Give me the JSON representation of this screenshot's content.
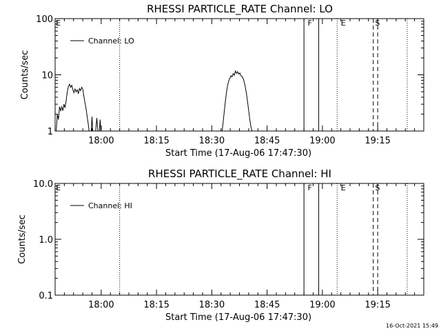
{
  "timestamp": "16-Oct-2021 15:49",
  "xlabel": "Start Time (17-Aug-06 17:47:30)",
  "x_ticks": [
    "18:00",
    "18:15",
    "18:30",
    "18:45",
    "19:00",
    "19:15"
  ],
  "x_minutes": [
    0,
    100
  ],
  "tick_minutes": [
    12.5,
    27.5,
    42.5,
    57.5,
    72.5,
    87.5
  ],
  "markers": {
    "dotted_minutes": [
      17.5,
      76.5,
      95.5
    ],
    "solid_minutes": [
      67.5,
      71.5
    ],
    "dashed_minutes": [
      86.3,
      87.5
    ],
    "labels": [
      {
        "text": "F",
        "minute": 68.5
      },
      {
        "text": "E",
        "minute": 77.5
      },
      {
        "text": "S",
        "minute": 86.8
      },
      {
        "text": "E",
        "minute": 0.2
      }
    ]
  },
  "chart_data": [
    {
      "type": "line",
      "title": "RHESSI PARTICLE_RATE Channel: LO",
      "xlabel": "Start Time (17-Aug-06 17:47:30)",
      "ylabel": "Counts/sec",
      "yscale": "log",
      "ylim": [
        1,
        100
      ],
      "y_ticks": [
        "1",
        "10",
        "100"
      ],
      "y_tick_values": [
        1,
        10,
        100
      ],
      "legend": {
        "label": "Channel: LO",
        "position": "top-left"
      },
      "series": [
        {
          "name": "Channel: LO",
          "segments": [
            [
              [
                0.3,
                1
              ],
              [
                0.6,
                2.0
              ],
              [
                0.9,
                1.6
              ],
              [
                1.2,
                2.7
              ],
              [
                1.5,
                2.3
              ],
              [
                1.8,
                2.7
              ],
              [
                2.1,
                2.3
              ],
              [
                2.4,
                3.0
              ],
              [
                2.7,
                2.6
              ],
              [
                3.0,
                3.5
              ],
              [
                3.3,
                5.0
              ],
              [
                3.6,
                6.2
              ],
              [
                3.9,
                6.8
              ],
              [
                4.2,
                6.0
              ],
              [
                4.5,
                6.5
              ],
              [
                4.8,
                5.5
              ],
              [
                5.1,
                4.8
              ],
              [
                5.4,
                5.6
              ],
              [
                5.7,
                5.0
              ],
              [
                6.0,
                5.4
              ],
              [
                6.3,
                4.6
              ],
              [
                6.6,
                5.7
              ],
              [
                6.9,
                5.2
              ],
              [
                7.2,
                6.0
              ],
              [
                7.5,
                5.6
              ],
              [
                7.8,
                4.2
              ],
              [
                8.1,
                3.2
              ],
              [
                8.4,
                2.5
              ],
              [
                8.7,
                1.8
              ],
              [
                9.0,
                1.3
              ],
              [
                9.2,
                1
              ]
            ],
            [
              [
                9.8,
                1
              ],
              [
                10.0,
                1.8
              ],
              [
                10.2,
                1
              ]
            ],
            [
              [
                11.0,
                1
              ],
              [
                11.3,
                1.7
              ],
              [
                11.6,
                1
              ]
            ],
            [
              [
                12.0,
                1
              ],
              [
                12.2,
                1.6
              ],
              [
                12.4,
                1
              ]
            ]
          ]
        },
        {
          "name": "Channel: LO",
          "segments": [
            [
              [
                45.3,
                1
              ],
              [
                45.6,
                1.5
              ],
              [
                45.9,
                2.3
              ],
              [
                46.2,
                3.5
              ],
              [
                46.5,
                5.0
              ],
              [
                46.8,
                6.6
              ],
              [
                47.1,
                7.8
              ],
              [
                47.4,
                8.7
              ],
              [
                47.7,
                9.6
              ],
              [
                48.0,
                9.2
              ],
              [
                48.3,
                10.5
              ],
              [
                48.6,
                9.8
              ],
              [
                48.9,
                11.7
              ],
              [
                49.2,
                10.6
              ],
              [
                49.5,
                11.4
              ],
              [
                49.8,
                10.3
              ],
              [
                50.1,
                10.8
              ],
              [
                50.4,
                9.6
              ],
              [
                50.7,
                9.4
              ],
              [
                51.0,
                8.6
              ],
              [
                51.3,
                7.4
              ],
              [
                51.6,
                6.0
              ],
              [
                51.9,
                4.6
              ],
              [
                52.2,
                3.3
              ],
              [
                52.5,
                2.3
              ],
              [
                52.8,
                1.6
              ],
              [
                53.1,
                1.2
              ],
              [
                53.4,
                1
              ]
            ]
          ]
        }
      ]
    },
    {
      "type": "line",
      "title": "RHESSI PARTICLE_RATE Channel: HI",
      "xlabel": "Start Time (17-Aug-06 17:47:30)",
      "ylabel": "Counts/sec",
      "yscale": "log",
      "ylim": [
        0.1,
        10
      ],
      "y_ticks": [
        "0.1",
        "1.0",
        "10.0"
      ],
      "y_tick_values": [
        0.1,
        1,
        10
      ],
      "legend": {
        "label": "Channel: HI",
        "position": "top-left"
      },
      "series": []
    }
  ]
}
